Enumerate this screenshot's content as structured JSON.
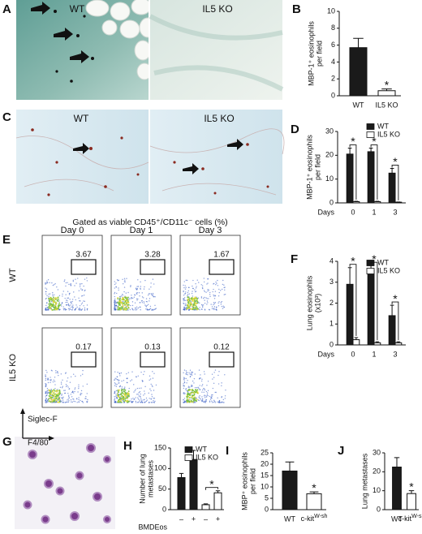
{
  "panels": {
    "A": {
      "letter": "A",
      "labels": [
        "WT",
        "IL5 KO"
      ]
    },
    "C": {
      "letter": "C",
      "labels": [
        "WT",
        "IL5 KO"
      ]
    },
    "G": {
      "letter": "G"
    }
  },
  "flow": {
    "letter": "E",
    "title": "Gated as viable CD45⁺/CD11c⁻ cells (%)",
    "columns": [
      "Day 0",
      "Day 1",
      "Day 3"
    ],
    "rows": [
      {
        "name": "WT",
        "values": [
          3.67,
          3.28,
          1.67
        ]
      },
      {
        "name": "IL5 KO",
        "values": [
          0.17,
          0.13,
          0.12
        ]
      }
    ],
    "x_label": "F4/80",
    "y_label": "Siglec-F"
  },
  "chart_data": [
    {
      "type": "bar",
      "panel": "B",
      "ylabel": [
        "MBP-1⁺ eosinophils",
        "per field"
      ],
      "categories": [
        "WT",
        "IL5 KO"
      ],
      "colors": [
        "#1a1a1a",
        "#ffffff"
      ],
      "series": [
        {
          "values": [
            5.7,
            0.6
          ],
          "errors": [
            1.1,
            0.2
          ]
        }
      ],
      "ylim": [
        0,
        10
      ],
      "yticks": [
        0,
        2,
        4,
        6,
        8,
        10
      ],
      "annotations": [
        "*"
      ]
    },
    {
      "type": "bar",
      "panel": "D",
      "ylabel": [
        "MBP-1⁺ eosinophils",
        "per field"
      ],
      "categories": [
        "0",
        "1",
        "3"
      ],
      "xlabel": "Days",
      "legend": "upper right",
      "series": [
        {
          "name": "WT",
          "color": "#1a1a1a",
          "values": [
            20.5,
            21.5,
            12.5
          ],
          "errors": [
            2.5,
            1.5,
            2
          ]
        },
        {
          "name": "IL5 KO",
          "color": "#ffffff",
          "values": [
            0.5,
            0.5,
            0.3
          ],
          "errors": [
            0.2,
            0.2,
            0.1
          ]
        }
      ],
      "ylim": [
        0,
        30
      ],
      "yticks": [
        0,
        10,
        20,
        30
      ],
      "annotations": [
        "*",
        "*",
        "*"
      ]
    },
    {
      "type": "bar",
      "panel": "F",
      "ylabel": [
        "Lung eosinophils",
        "(x10³)"
      ],
      "categories": [
        "0",
        "1",
        "3"
      ],
      "xlabel": "Days",
      "legend": "upper right",
      "series": [
        {
          "name": "WT",
          "color": "#1a1a1a",
          "values": [
            2.9,
            3.6,
            1.4
          ],
          "errors": [
            0.8,
            0.2,
            0.5
          ]
        },
        {
          "name": "IL5 KO",
          "color": "#ffffff",
          "values": [
            0.25,
            0.1,
            0.1
          ],
          "errors": [
            0.1,
            0.05,
            0.05
          ]
        }
      ],
      "ylim": [
        0,
        4
      ],
      "yticks": [
        0,
        1,
        2,
        3,
        4
      ],
      "annotations": [
        "*",
        "*",
        "*"
      ]
    },
    {
      "type": "bar",
      "panel": "H",
      "ylabel": [
        "Number of lung",
        "metastases"
      ],
      "categories": [
        "–",
        "+",
        "–",
        "+"
      ],
      "xlabel": "BMDEos",
      "legend": "upper right",
      "series": [
        {
          "name": "WT",
          "color": "#1a1a1a",
          "values": [
            78,
            122,
            null,
            null
          ],
          "errors": [
            10,
            22,
            null,
            null
          ]
        },
        {
          "name": "IL5 KO",
          "color": "#ffffff",
          "values": [
            null,
            null,
            12,
            41
          ],
          "errors": [
            null,
            null,
            2,
            5
          ]
        }
      ],
      "ylim": [
        0,
        150
      ],
      "yticks": [
        0,
        50,
        100,
        150
      ],
      "annotations": [
        "*"
      ]
    },
    {
      "type": "bar",
      "panel": "I",
      "ylabel": [
        "MBP⁺ eosinophils",
        "per field"
      ],
      "categories": [
        "WT",
        {
          "text": "c-kit",
          "sup": "W-sh"
        }
      ],
      "colors": [
        "#1a1a1a",
        "#ffffff"
      ],
      "series": [
        {
          "values": [
            17,
            7
          ],
          "errors": [
            4,
            0.8
          ]
        }
      ],
      "ylim": [
        0,
        25
      ],
      "yticks": [
        0,
        5,
        10,
        15,
        20,
        25
      ],
      "annotations": [
        "*"
      ]
    },
    {
      "type": "bar",
      "panel": "J",
      "ylabel": [
        "Lung metastases"
      ],
      "categories": [
        "WT",
        {
          "text": "c-kit",
          "sup": "W-sh"
        }
      ],
      "colors": [
        "#1a1a1a",
        "#ffffff"
      ],
      "series": [
        {
          "values": [
            22.5,
            8.5
          ],
          "errors": [
            5,
            1.5
          ]
        }
      ],
      "ylim": [
        0,
        30
      ],
      "yticks": [
        0,
        10,
        20,
        30
      ],
      "annotations": [
        "*"
      ]
    }
  ]
}
